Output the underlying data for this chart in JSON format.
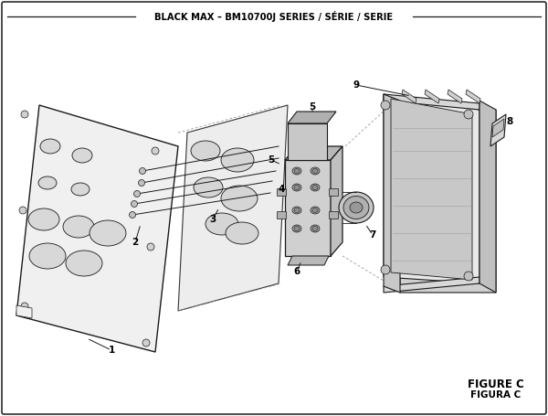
{
  "title": "BLACK MAX – BM10700J SERIES / SÉRIE / SERIE",
  "figure_label": "FIGURE C",
  "figura_label": "FIGURA C",
  "bg_color": "#ffffff",
  "border_color": "#1a1a1a",
  "line_color": "#1a1a1a",
  "figsize": [
    6.0,
    4.55
  ],
  "dpi": 100
}
